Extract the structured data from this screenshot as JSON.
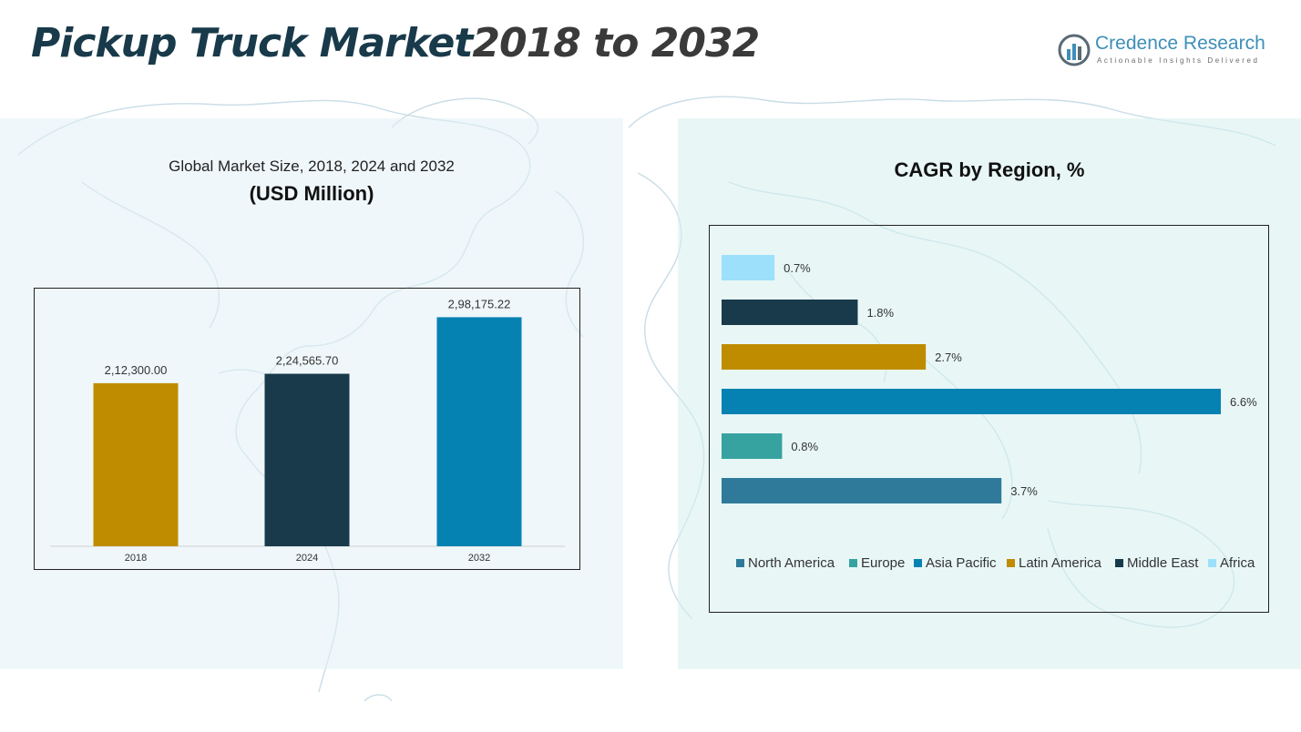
{
  "header": {
    "title_main": "Pickup Truck Market",
    "title_years": "2018 to 2032"
  },
  "logo": {
    "name_part1": "Credence",
    "name_part2": "Research",
    "tagline": "Actionable Insights Delivered"
  },
  "colors": {
    "title": "#183a4a",
    "north_america": "#2f7a9a",
    "europe": "#36a3a0",
    "asia_pacific": "#0682b2",
    "latin_america": "#bf8c00",
    "middle_east": "#183a4a",
    "africa": "#9de0fb"
  },
  "chart_data": [
    {
      "type": "bar",
      "title": "Global Market Size, 2018, 2024 and 2032",
      "subtitle": "(USD Million)",
      "categories": [
        "2018",
        "2024",
        "2032"
      ],
      "values": [
        212300.0,
        224565.7,
        298175.22
      ],
      "value_labels": [
        "2,12,300.00",
        "2,24,565.70",
        "2,98,175.22"
      ],
      "bar_colors": [
        "#bf8c00",
        "#183a4a",
        "#0682b2"
      ],
      "ylim": [
        0,
        320000
      ],
      "grid": false
    },
    {
      "type": "bar",
      "orientation": "horizontal",
      "title": "CAGR by Region, %",
      "series": [
        {
          "name": "Africa",
          "value": 0.7,
          "label": "0.7%",
          "color": "#9de0fb"
        },
        {
          "name": "Middle East",
          "value": 1.8,
          "label": "1.8%",
          "color": "#183a4a"
        },
        {
          "name": "Latin America",
          "value": 2.7,
          "label": "2.7%",
          "color": "#bf8c00"
        },
        {
          "name": "Asia Pacific",
          "value": 6.6,
          "label": "6.6%",
          "color": "#0682b2"
        },
        {
          "name": "Europe",
          "value": 0.8,
          "label": "0.8%",
          "color": "#36a3a0"
        },
        {
          "name": "North America",
          "value": 3.7,
          "label": "3.7%",
          "color": "#2f7a9a"
        }
      ],
      "legend": [
        "North America",
        "Europe",
        "Asia Pacific",
        "Latin America",
        "Middle East",
        "Africa"
      ],
      "legend_position": "bottom",
      "xlim": [
        0,
        6.6
      ],
      "grid": false
    }
  ]
}
